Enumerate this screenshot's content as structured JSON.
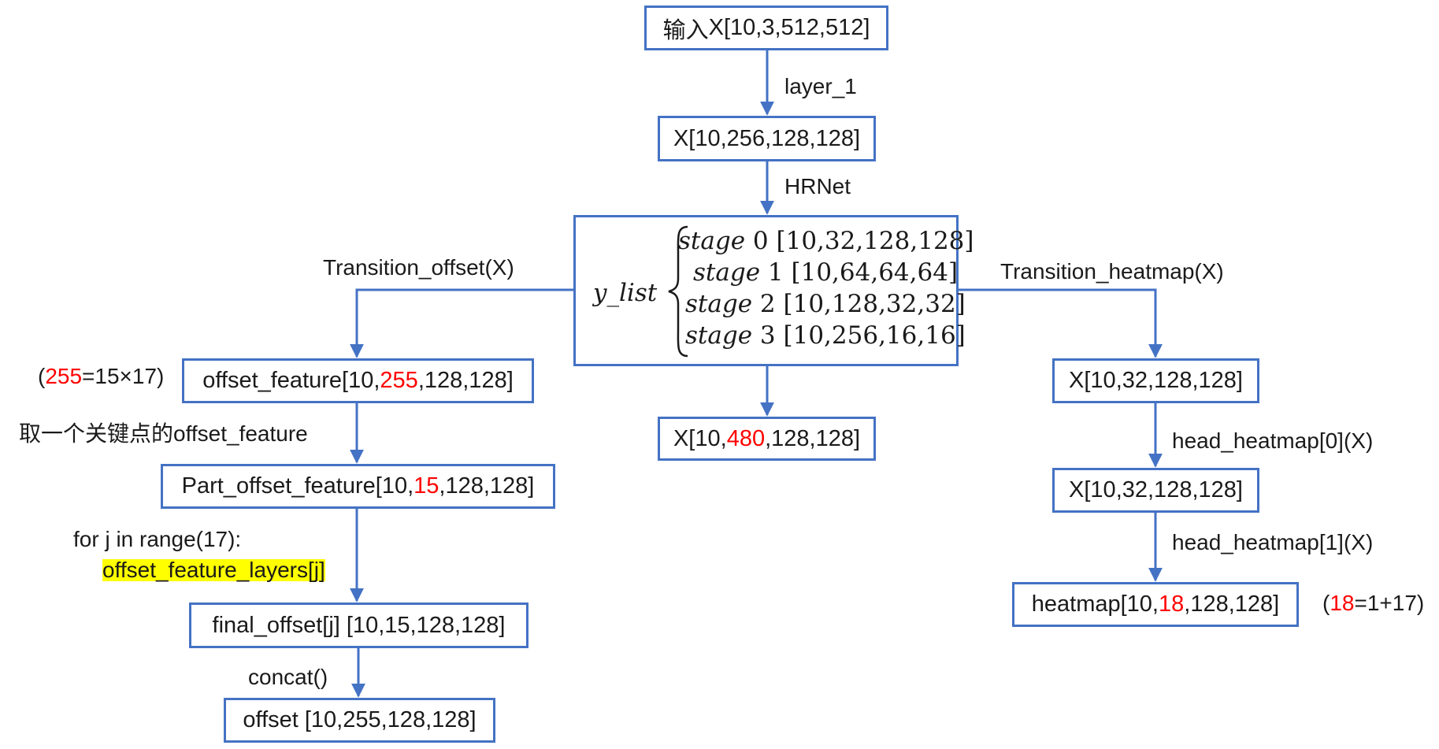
{
  "colors": {
    "box_border": "#4472c4",
    "arrow": "#4472c4",
    "highlight_numbers": "#ff0000",
    "code_highlight": "#ffff00"
  },
  "nodes": {
    "input": {
      "prefix": "输入",
      "text": "X[10,3,512,512]"
    },
    "layer1_out": "X[10,256,128,128]",
    "y_list": {
      "label": "y_list",
      "stages": [
        {
          "name": "stage",
          "index": "0",
          "shape": "[10,32,128,128]"
        },
        {
          "name": "stage",
          "index": "1",
          "shape": "[10,64,64,64]"
        },
        {
          "name": "stage",
          "index": "2",
          "shape": "[10,128,32,32]"
        },
        {
          "name": "stage",
          "index": "3",
          "shape": "[10,256,16,16]"
        }
      ]
    },
    "concat_out": {
      "pre": "X[10,",
      "red": "480",
      "post": ",128,128]"
    },
    "offset_feature": {
      "pre": "offset_feature[10,",
      "red": "255",
      "post": ",128,128]"
    },
    "part_offset_feature": {
      "pre": "Part_offset_feature[10,",
      "red": "15",
      "post": ",128,128]"
    },
    "final_offset": "final_offset[j] [10,15,128,128]",
    "offset": "offset [10,255,128,128]",
    "heat_x1": "X[10,32,128,128]",
    "heat_x2": "X[10,32,128,128]",
    "heatmap": {
      "pre": "heatmap[10,",
      "red": "18",
      "post": ",128,128]"
    }
  },
  "edge_labels": {
    "layer_1": "layer_1",
    "hrnet": "HRNet",
    "transition_offset": "Transition_offset(X)",
    "transition_heatmap": "Transition_heatmap(X)",
    "take_keypoint": "取一个关键点的offset_feature",
    "for_loop": "for j in range(17):",
    "offset_layers": "offset_feature_layers[j]",
    "concat": "concat()",
    "head0": "head_heatmap[0](X)",
    "head1": "head_heatmap[1](X)"
  },
  "notes": {
    "offset_note": {
      "open": "(",
      "red": "255",
      "rest": "=15×17)"
    },
    "heatmap_note": {
      "open": "(",
      "red": "18",
      "rest": "=1+17)"
    }
  }
}
